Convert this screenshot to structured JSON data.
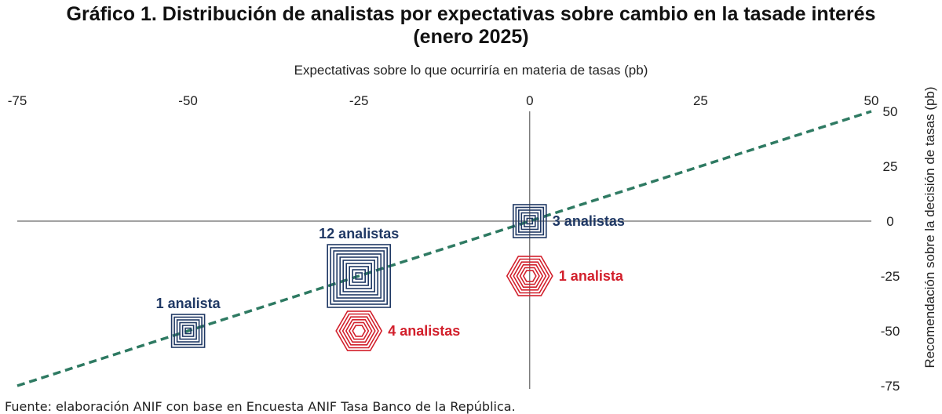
{
  "title": {
    "line1": "Gráfico 1. Distribución de analistas por expectativas sobre cambio en la tasade interés",
    "line2": "(enero 2025)"
  },
  "source": "Fuente: elaboración ANIF con base en Encuesta ANIF Tasa Banco de la República.",
  "chart_data": {
    "type": "scatter",
    "xlabel": "Expectativas sobre lo que ocurriría en materia de tasas (pb)",
    "ylabel": "Recomendación sobre la decisión de tasas (pb)",
    "xlim": [
      -75,
      50
    ],
    "ylim": [
      -75,
      50
    ],
    "xticks": [
      -75,
      -50,
      -25,
      0,
      25,
      50
    ],
    "yticks": [
      50,
      25,
      0,
      -25,
      -50,
      -75
    ],
    "x_tick_labels": [
      "-75",
      "-50",
      "-25",
      "0",
      "25",
      "50"
    ],
    "y_tick_labels": [
      "50",
      "25",
      "0",
      "-25",
      "-50",
      "-75"
    ],
    "grid": false,
    "reference_line": {
      "style": "dashed",
      "color": "#2e7a62",
      "from": [
        -75,
        -75
      ],
      "to": [
        50,
        50
      ]
    },
    "series": [
      {
        "marker": "square",
        "color": "#1f3864",
        "points": [
          {
            "x": -50,
            "y": -50,
            "count": 1,
            "label": "1 analista",
            "label_pos": "above"
          },
          {
            "x": -25,
            "y": -25,
            "count": 12,
            "label": "12 analistas",
            "label_pos": "above"
          },
          {
            "x": 0,
            "y": 0,
            "count": 3,
            "label": "3 analistas",
            "label_pos": "right"
          }
        ]
      },
      {
        "marker": "hexagon",
        "color": "#d21f2b",
        "points": [
          {
            "x": -25,
            "y": -50,
            "count": 4,
            "label": "4 analistas",
            "label_pos": "right"
          },
          {
            "x": 0,
            "y": -25,
            "count": 1,
            "label": "1 analista",
            "label_pos": "right"
          }
        ]
      }
    ]
  }
}
